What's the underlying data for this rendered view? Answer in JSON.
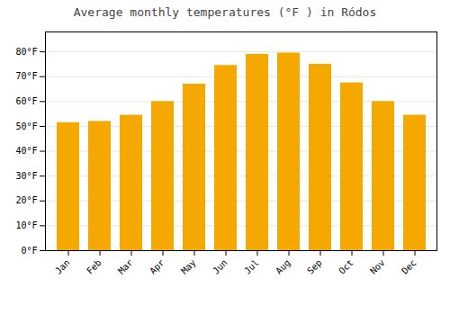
{
  "chart_data": {
    "type": "bar",
    "title": "Average monthly temperatures (°F ) in Ródos",
    "categories": [
      "Jan",
      "Feb",
      "Mar",
      "Apr",
      "May",
      "Jun",
      "Jul",
      "Aug",
      "Sep",
      "Oct",
      "Nov",
      "Dec"
    ],
    "values": [
      51.5,
      52,
      54.5,
      60,
      67,
      74.5,
      79,
      79.5,
      75,
      67.5,
      60,
      54.5
    ],
    "color": "#F5A800",
    "ylim": [
      0,
      88
    ],
    "yticks": [
      {
        "value": 0,
        "label": "0°F"
      },
      {
        "value": 10,
        "label": "10°F"
      },
      {
        "value": 20,
        "label": "20°F"
      },
      {
        "value": 30,
        "label": "30°F"
      },
      {
        "value": 40,
        "label": "40°F"
      },
      {
        "value": 50,
        "label": "50°F"
      },
      {
        "value": 60,
        "label": "60°F"
      },
      {
        "value": 70,
        "label": "70°F"
      },
      {
        "value": 80,
        "label": "80°F"
      }
    ],
    "grid": true
  }
}
